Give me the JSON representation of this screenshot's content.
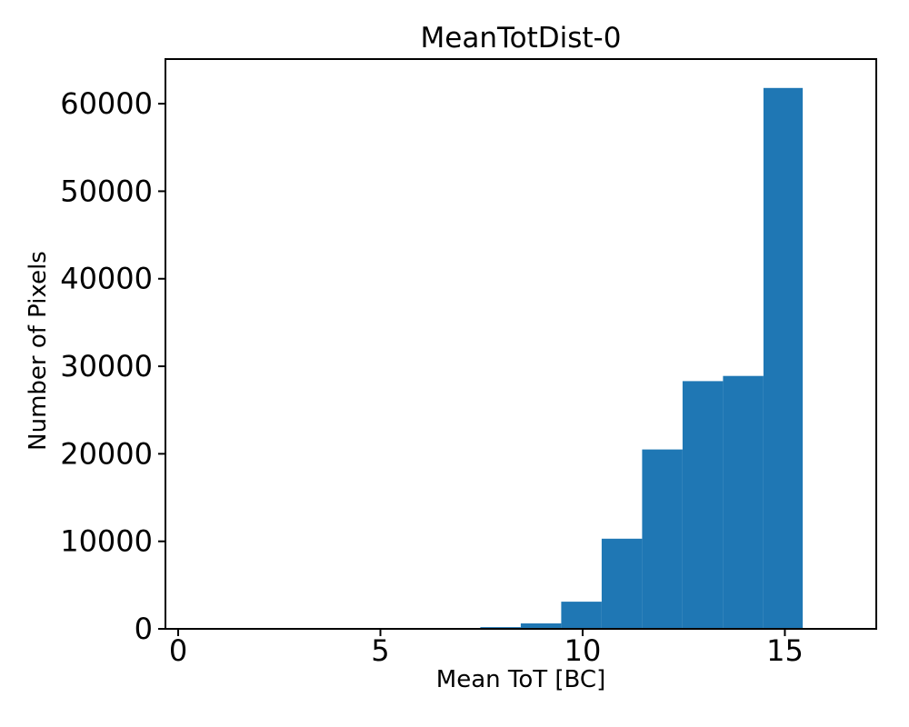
{
  "chart_data": {
    "type": "bar",
    "subtype": "histogram",
    "title": "MeanTotDist-0",
    "xlabel": "Mean ToT [BC]",
    "ylabel": "Number of Pixels",
    "bar_color": "#1f77b4",
    "axis_color": "#000000",
    "background_color": "#ffffff",
    "grid": false,
    "legend": null,
    "bin_edges": [
      7.47,
      8.47,
      9.47,
      10.47,
      11.47,
      12.47,
      13.47,
      14.47,
      15.44
    ],
    "counts": [
      200,
      620,
      3100,
      10300,
      20500,
      28300,
      28900,
      61800
    ],
    "xlim": [
      -0.315,
      17.26
    ],
    "ylim": [
      0,
      65100
    ],
    "x_ticks": [
      {
        "value": 0,
        "label": "0"
      },
      {
        "value": 5,
        "label": "5"
      },
      {
        "value": 10,
        "label": "10"
      },
      {
        "value": 15,
        "label": "15"
      }
    ],
    "y_ticks": [
      {
        "value": 0,
        "label": "0"
      },
      {
        "value": 10000,
        "label": "10000"
      },
      {
        "value": 20000,
        "label": "20000"
      },
      {
        "value": 30000,
        "label": "30000"
      },
      {
        "value": 40000,
        "label": "40000"
      },
      {
        "value": 50000,
        "label": "50000"
      },
      {
        "value": 60000,
        "label": "60000"
      }
    ]
  }
}
